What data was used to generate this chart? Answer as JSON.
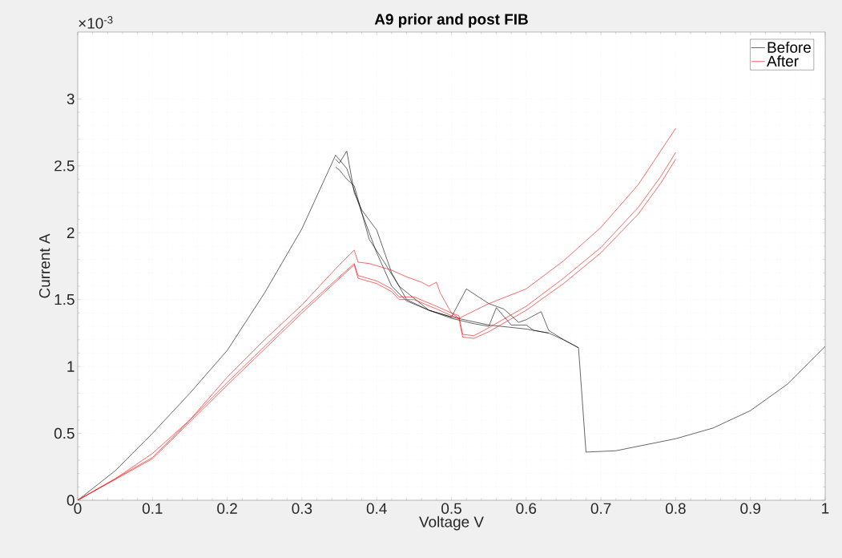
{
  "chart_data": {
    "type": "line",
    "title": "A9 prior and post FIB",
    "xlabel": "Voltage V",
    "ylabel": "Current A",
    "annotations": [
      "×10$^{-3}$"
    ],
    "xlim": [
      0,
      1
    ],
    "ylim": [
      0,
      3.5
    ],
    "xticks": [
      0,
      0.1,
      0.2,
      0.3,
      0.4,
      0.5,
      0.6,
      0.7,
      0.8,
      0.9,
      1
    ],
    "yticks": [
      0,
      0.5,
      1,
      1.5,
      2,
      2.5,
      3
    ],
    "grid": true,
    "legend": "top right",
    "marker": "none",
    "line_style": "solid",
    "series": [
      {
        "name": "Before",
        "color": "#000000",
        "x": [
          0,
          0.05,
          0.1,
          0.15,
          0.2,
          0.25,
          0.3,
          0.345,
          0.36,
          0.38,
          0.4,
          0.42,
          0.44,
          0.47,
          0.5,
          0.55,
          0.6,
          0.63,
          0.65,
          0.67,
          0.68,
          0.72,
          0.8,
          0.85,
          0.9,
          0.95,
          1
        ],
        "values": [
          0,
          0.22,
          0.5,
          0.8,
          1.12,
          1.55,
          2.03,
          2.58,
          2.48,
          2.15,
          1.85,
          1.6,
          1.49,
          1.42,
          1.37,
          1.31,
          1.28,
          1.25,
          1.2,
          1.14,
          0.36,
          0.37,
          0.46,
          0.54,
          0.67,
          0.87,
          1.15
        ]
      },
      {
        "color": "#000000",
        "x": [
          0.345,
          0.35,
          0.36,
          0.37,
          0.38,
          0.4,
          0.42,
          0.44,
          0.47,
          0.5,
          0.52,
          0.55,
          0.57,
          0.59,
          0.6,
          0.62,
          0.63,
          0.65,
          0.67
        ],
        "values": [
          2.55,
          2.52,
          2.61,
          2.3,
          2.17,
          2.02,
          1.7,
          1.5,
          1.42,
          1.37,
          1.58,
          1.47,
          1.43,
          1.33,
          1.35,
          1.41,
          1.27,
          1.2,
          1.14
        ]
      },
      {
        "color": "#000000",
        "x": [
          0.345,
          0.35,
          0.36,
          0.37,
          0.39,
          0.41,
          0.43,
          0.47,
          0.5,
          0.53,
          0.55,
          0.56,
          0.58,
          0.6,
          0.61,
          0.63
        ],
        "values": [
          2.49,
          2.47,
          2.4,
          2.35,
          1.95,
          1.78,
          1.6,
          1.42,
          1.36,
          1.32,
          1.3,
          1.44,
          1.31,
          1.31,
          1.27,
          1.25
        ]
      },
      {
        "name": "After",
        "color": "#ff0000",
        "x": [
          0,
          0.05,
          0.1,
          0.15,
          0.2,
          0.25,
          0.3,
          0.35,
          0.37,
          0.375,
          0.39,
          0.42,
          0.44,
          0.46,
          0.47,
          0.48,
          0.485,
          0.5,
          0.51,
          0.55,
          0.6,
          0.65,
          0.7,
          0.75,
          0.8
        ],
        "values": [
          0,
          0.16,
          0.35,
          0.6,
          0.92,
          1.2,
          1.46,
          1.76,
          1.87,
          1.78,
          1.77,
          1.72,
          1.67,
          1.63,
          1.6,
          1.63,
          1.55,
          1.4,
          1.36,
          1.47,
          1.58,
          1.79,
          2.04,
          2.36,
          2.78
        ]
      },
      {
        "color": "#ff0000",
        "x": [
          0,
          0.1,
          0.2,
          0.3,
          0.37,
          0.375,
          0.4,
          0.42,
          0.43,
          0.45,
          0.48,
          0.5,
          0.51,
          0.515,
          0.53,
          0.55,
          0.6,
          0.65,
          0.7,
          0.75,
          0.78,
          0.8
        ],
        "values": [
          0,
          0.31,
          0.86,
          1.4,
          1.76,
          1.66,
          1.62,
          1.56,
          1.5,
          1.5,
          1.43,
          1.38,
          1.36,
          1.22,
          1.21,
          1.26,
          1.42,
          1.62,
          1.85,
          2.14,
          2.37,
          2.55
        ]
      },
      {
        "color": "#ff0000",
        "x": [
          0,
          0.1,
          0.2,
          0.3,
          0.37,
          0.375,
          0.4,
          0.42,
          0.43,
          0.45,
          0.48,
          0.5,
          0.51,
          0.515,
          0.53,
          0.55,
          0.6,
          0.65,
          0.7,
          0.75,
          0.78,
          0.8
        ],
        "values": [
          0,
          0.32,
          0.88,
          1.42,
          1.77,
          1.68,
          1.64,
          1.58,
          1.52,
          1.52,
          1.45,
          1.4,
          1.38,
          1.24,
          1.23,
          1.29,
          1.45,
          1.66,
          1.89,
          2.19,
          2.42,
          2.6
        ]
      }
    ]
  }
}
